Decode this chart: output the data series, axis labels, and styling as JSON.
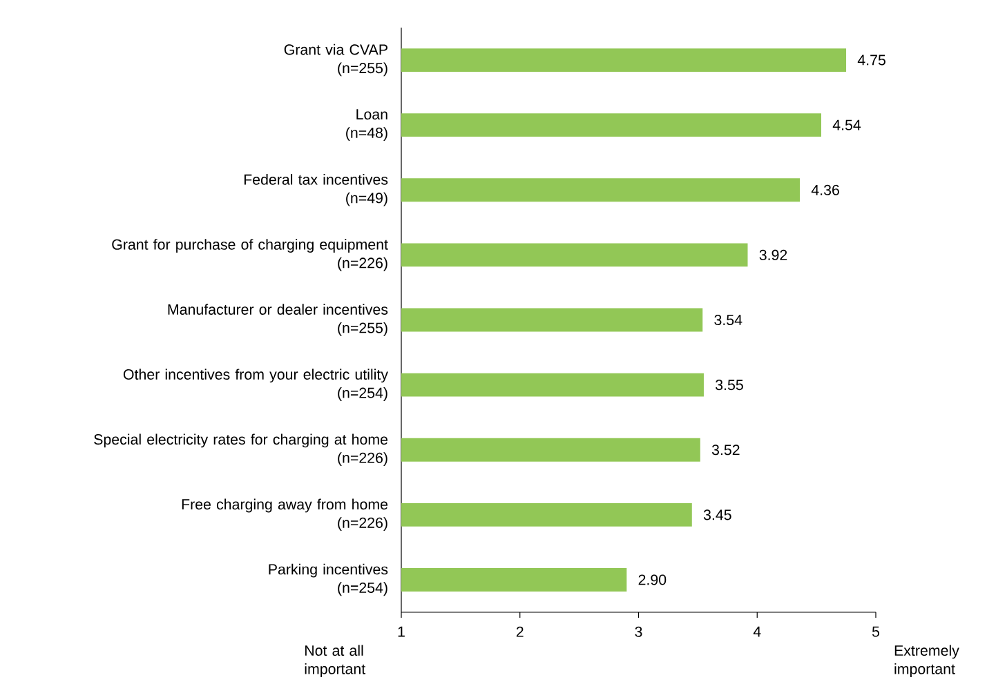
{
  "chart_data": {
    "type": "bar",
    "orientation": "horizontal",
    "categories": [
      "Grant via CVAP\n(n=255)",
      "Loan\n(n=48)",
      "Federal tax incentives\n(n=49)",
      "Grant for purchase of charging equipment\n(n=226)",
      "Manufacturer or dealer incentives\n(n=255)",
      "Other incentives from your electric utility\n(n=254)",
      "Special electricity rates for charging at home\n(n=226)",
      "Free charging away from home\n(n=226)",
      "Parking incentives\n(n=254)"
    ],
    "values": [
      4.75,
      4.54,
      4.36,
      3.92,
      3.54,
      3.55,
      3.52,
      3.45,
      2.9
    ],
    "value_labels": [
      "4.75",
      "4.54",
      "4.36",
      "3.92",
      "3.54",
      "3.55",
      "3.52",
      "3.45",
      "2.90"
    ],
    "color": "#92c756",
    "xlim": [
      1,
      5
    ],
    "xticks": [
      1,
      2,
      3,
      4,
      5
    ],
    "annotations": [
      "Not at all\nimportant",
      "Extremely\nimportant"
    ],
    "grid": false
  }
}
